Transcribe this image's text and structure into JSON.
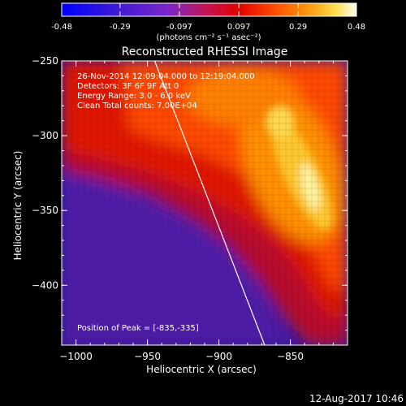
{
  "colorbar": {
    "tick_labels": [
      "-0.48",
      "-0.29",
      "-0.097",
      "0.097",
      "0.29",
      "0.48"
    ],
    "tick_values": [
      -0.48,
      -0.29,
      -0.097,
      0.097,
      0.29,
      0.48
    ],
    "range": [
      -0.48,
      0.48
    ],
    "units_label": "(photons cm⁻² s⁻¹ asec⁻²)"
  },
  "chart_data": {
    "type": "heatmap",
    "title": "Reconstructed RHESSI Image",
    "xlabel": "Heliocentric X (arcsec)",
    "ylabel": "Heliocentric Y (arcsec)",
    "xlim": [
      -1010,
      -810
    ],
    "ylim": [
      -440,
      -250
    ],
    "x_ticks": [
      -1000,
      -950,
      -900,
      -850
    ],
    "y_ticks": [
      -250,
      -300,
      -350,
      -400
    ],
    "x_tick_labels": [
      "−1000",
      "−950",
      "−900",
      "−850"
    ],
    "y_tick_labels": [
      "−250",
      "−300",
      "−350",
      "−400"
    ],
    "colormap": "hot-on-blue (RHESSI)",
    "peak": [
      -835,
      -335
    ],
    "limb_line": [
      [
        -945,
        -250
      ],
      [
        -868,
        -440
      ]
    ],
    "annotations": [
      "26-Nov-2014 12:09:04.000 to 12:19:04.000",
      "Detectors: 3F 6F 9F  Att 0",
      "Energy Range: 3.0 - 6.0 keV",
      "Clean     Total counts: 7.00E+04"
    ],
    "peak_label": "Position of Peak = [-835,-335]"
  },
  "footer": {
    "timestamp": "12-Aug-2017 10:46"
  }
}
